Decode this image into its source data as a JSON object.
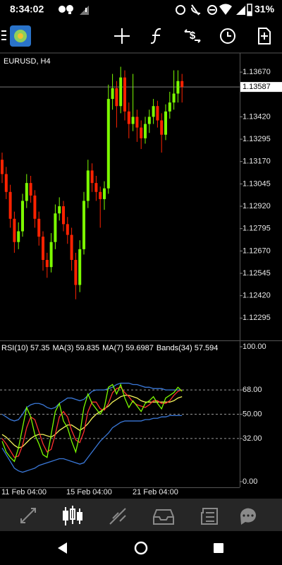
{
  "status_bar": {
    "time": "8:34:02",
    "battery": "31%"
  },
  "chart": {
    "type": "candlestick",
    "symbol": "EURUSD, H4",
    "up_color": "#7cfc00",
    "down_color": "#ff2200",
    "ylim": [
      1.1217,
      1.13777
    ],
    "yticks": [
      {
        "value": 1.1367,
        "label": "1.13670"
      },
      {
        "value": 1.1342,
        "label": "1.13420"
      },
      {
        "value": 1.13295,
        "label": "1.13295"
      },
      {
        "value": 1.1317,
        "label": "1.13170"
      },
      {
        "value": 1.13045,
        "label": "1.13045"
      },
      {
        "value": 1.1292,
        "label": "1.12920"
      },
      {
        "value": 1.12795,
        "label": "1.12795"
      },
      {
        "value": 1.1267,
        "label": "1.12670"
      },
      {
        "value": 1.12545,
        "label": "1.12545"
      },
      {
        "value": 1.1242,
        "label": "1.12420"
      },
      {
        "value": 1.12295,
        "label": "1.12295"
      }
    ],
    "current_price": {
      "value": 1.13587,
      "label": "1.13587"
    },
    "candles": [
      [
        1.1318,
        1.1322,
        1.1305,
        1.131
      ],
      [
        1.131,
        1.1314,
        1.1296,
        1.13
      ],
      [
        1.13,
        1.1304,
        1.128,
        1.1285
      ],
      [
        1.1285,
        1.1289,
        1.1266,
        1.1272
      ],
      [
        1.1272,
        1.1283,
        1.1268,
        1.1278
      ],
      [
        1.1278,
        1.1299,
        1.1275,
        1.1295
      ],
      [
        1.1295,
        1.131,
        1.1291,
        1.1305
      ],
      [
        1.1305,
        1.1309,
        1.1294,
        1.1298
      ],
      [
        1.1298,
        1.1301,
        1.128,
        1.1285
      ],
      [
        1.1285,
        1.1289,
        1.127,
        1.1275
      ],
      [
        1.1275,
        1.1278,
        1.1256,
        1.1262
      ],
      [
        1.1262,
        1.1266,
        1.1252,
        1.1258
      ],
      [
        1.1258,
        1.1277,
        1.1255,
        1.1272
      ],
      [
        1.1272,
        1.1293,
        1.1268,
        1.1288
      ],
      [
        1.1288,
        1.1297,
        1.1284,
        1.1292
      ],
      [
        1.1292,
        1.1295,
        1.1278,
        1.1282
      ],
      [
        1.1282,
        1.1286,
        1.1271,
        1.1276
      ],
      [
        1.1276,
        1.128,
        1.1256,
        1.1262
      ],
      [
        1.1262,
        1.1266,
        1.124,
        1.1248
      ],
      [
        1.1248,
        1.1273,
        1.1244,
        1.1268
      ],
      [
        1.1268,
        1.13,
        1.1265,
        1.1295
      ],
      [
        1.1295,
        1.1318,
        1.1291,
        1.1312
      ],
      [
        1.1312,
        1.1316,
        1.13,
        1.1305
      ],
      [
        1.1305,
        1.1309,
        1.1295,
        1.13
      ],
      [
        1.13,
        1.1303,
        1.128,
        1.1296
      ],
      [
        1.1296,
        1.1306,
        1.129,
        1.1302
      ],
      [
        1.1302,
        1.136,
        1.1299,
        1.1352
      ],
      [
        1.1352,
        1.1366,
        1.1346,
        1.1358
      ],
      [
        1.1358,
        1.1362,
        1.1336,
        1.1348
      ],
      [
        1.1348,
        1.137,
        1.1344,
        1.1364
      ],
      [
        1.1364,
        1.1368,
        1.134,
        1.1345
      ],
      [
        1.1345,
        1.135,
        1.133,
        1.1338
      ],
      [
        1.1338,
        1.1366,
        1.1334,
        1.1342
      ],
      [
        1.1342,
        1.1346,
        1.1328,
        1.1336
      ],
      [
        1.1336,
        1.134,
        1.1324,
        1.133
      ],
      [
        1.133,
        1.1342,
        1.1327,
        1.1338
      ],
      [
        1.1338,
        1.1346,
        1.1333,
        1.1342
      ],
      [
        1.1342,
        1.1352,
        1.1338,
        1.1348
      ],
      [
        1.1348,
        1.1351,
        1.1336,
        1.134
      ],
      [
        1.134,
        1.1344,
        1.1322,
        1.1332
      ],
      [
        1.1332,
        1.1349,
        1.1329,
        1.1345
      ],
      [
        1.1345,
        1.1356,
        1.1341,
        1.135
      ],
      [
        1.135,
        1.1368,
        1.1346,
        1.1355
      ],
      [
        1.1355,
        1.1368,
        1.135,
        1.1362
      ],
      [
        1.1362,
        1.1366,
        1.135,
        1.13587
      ]
    ],
    "date_labels": [
      "11 Feb 04:00",
      "15 Feb 04:00",
      "21 Feb 04:00"
    ],
    "indicator": {
      "header": [
        "RSI(10) 57.35",
        "MA(3) 59.835",
        "MA(7) 59.6987",
        "Bands(34) 57.594"
      ],
      "ylim": [
        0,
        100
      ],
      "yticks": [
        {
          "value": 100,
          "label": "100.00"
        },
        {
          "value": 68,
          "label": "68.00"
        },
        {
          "value": 50,
          "label": "50.00"
        },
        {
          "value": 32,
          "label": "32.00"
        },
        {
          "value": 0,
          "label": "0.00"
        }
      ],
      "series": [
        {
          "color": "#3a78d8",
          "values": [
            50,
            48,
            46,
            45,
            46,
            50,
            55,
            57,
            58,
            58,
            57,
            55,
            54,
            55,
            58,
            60,
            62,
            62,
            61,
            60,
            61,
            64,
            67,
            68,
            68,
            68,
            69,
            70,
            72,
            73,
            73,
            73,
            72,
            72,
            71,
            70,
            70,
            69,
            69,
            69,
            68,
            68,
            68,
            68,
            68
          ]
        },
        {
          "color": "#3a78d8",
          "values": [
            25,
            20,
            15,
            10,
            8,
            7,
            8,
            9,
            10,
            12,
            13,
            14,
            15,
            16,
            17,
            17,
            16,
            15,
            14,
            13,
            14,
            18,
            22,
            26,
            30,
            33,
            36,
            40,
            42,
            44,
            45,
            45,
            45,
            45,
            45,
            46,
            46,
            47,
            47,
            48,
            48,
            49,
            49,
            49,
            49
          ]
        },
        {
          "color": "#f5f55a",
          "values": [
            35,
            33,
            30,
            27,
            25,
            26,
            29,
            32,
            34,
            35,
            35,
            34,
            33,
            35,
            38,
            40,
            42,
            42,
            40,
            38,
            40,
            43,
            47,
            50,
            52,
            54,
            56,
            59,
            61,
            63,
            64,
            64,
            63,
            62,
            60,
            59,
            59,
            59,
            59,
            59,
            59,
            59,
            60,
            62,
            63
          ]
        },
        {
          "color": "#ff3030",
          "values": [
            32,
            28,
            23,
            18,
            19,
            27,
            40,
            48,
            46,
            37,
            28,
            22,
            24,
            35,
            48,
            52,
            48,
            38,
            31,
            29,
            37,
            52,
            59,
            59,
            54,
            53,
            58,
            66,
            69,
            70,
            66,
            63,
            59,
            57,
            56,
            55,
            57,
            60,
            60,
            58,
            58,
            60,
            64,
            67,
            68
          ]
        },
        {
          "color": "#7cfc00",
          "values": [
            30,
            22,
            18,
            15,
            25,
            40,
            55,
            48,
            35,
            28,
            20,
            18,
            35,
            52,
            58,
            45,
            40,
            30,
            22,
            35,
            55,
            65,
            58,
            54,
            50,
            55,
            70,
            72,
            65,
            72,
            62,
            55,
            60,
            56,
            52,
            58,
            60,
            63,
            58,
            54,
            62,
            64,
            66,
            70,
            67
          ]
        }
      ]
    }
  }
}
